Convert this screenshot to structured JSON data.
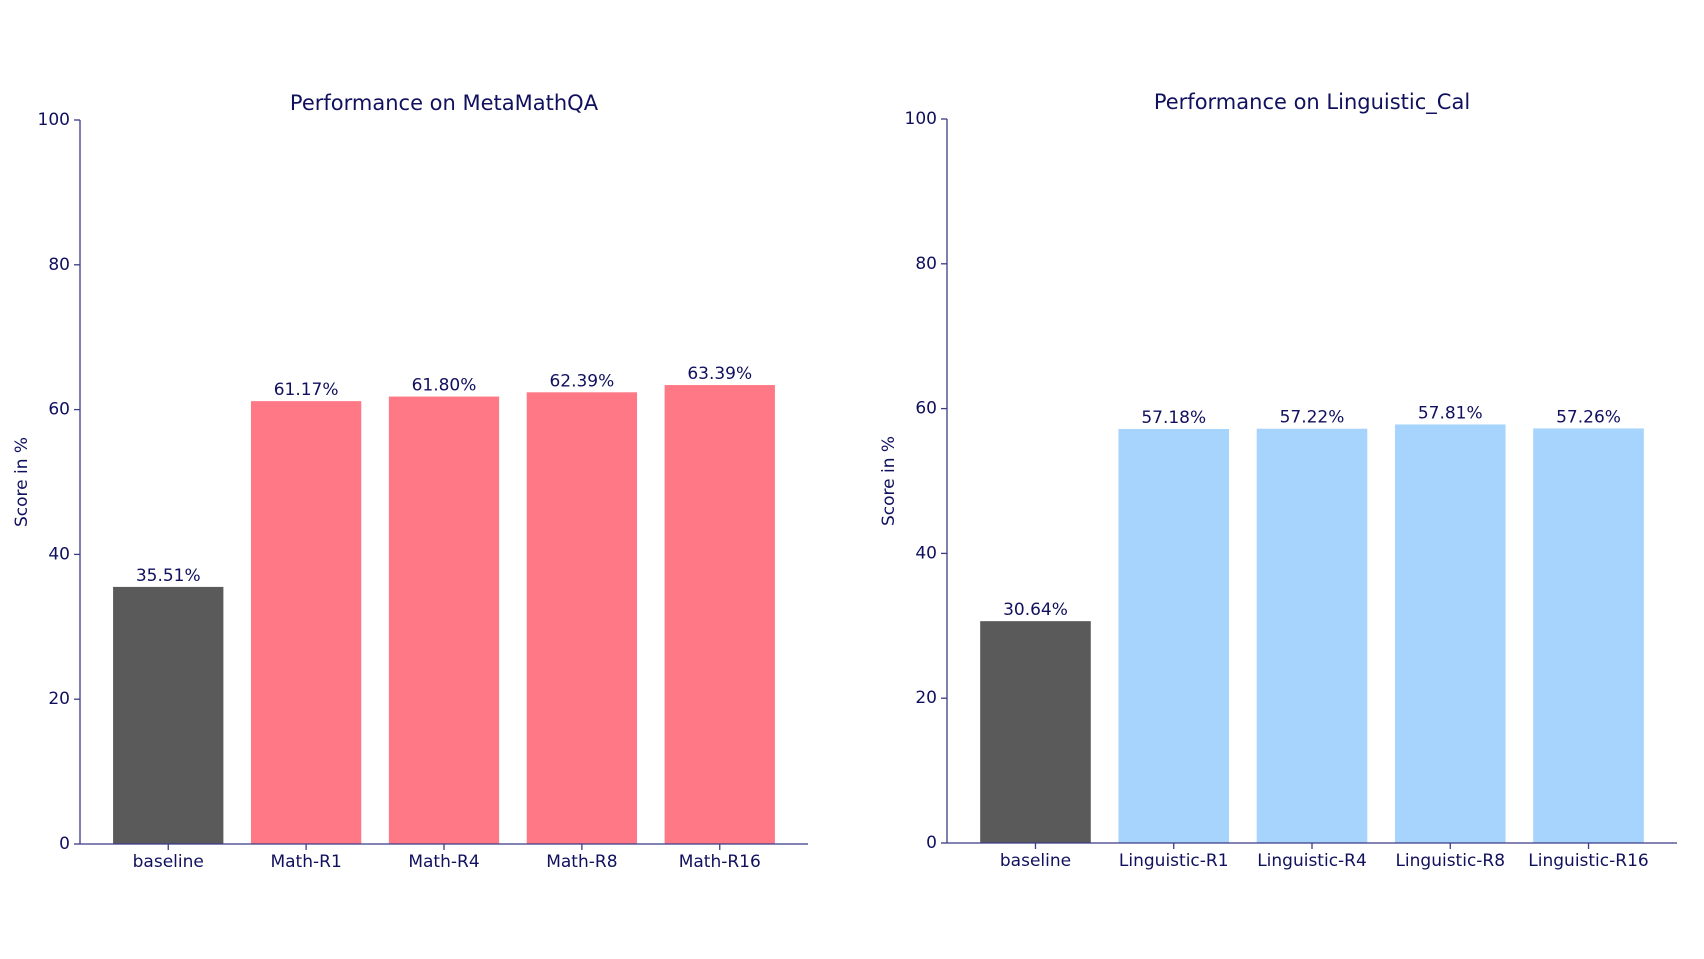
{
  "chart_data": [
    {
      "type": "bar",
      "title": "Performance on MetaMathQA",
      "y_label": "Score in %",
      "categories": [
        "baseline",
        "Math-R1",
        "Math-R4",
        "Math-R8",
        "Math-R16"
      ],
      "values": [
        35.51,
        61.17,
        61.8,
        62.39,
        63.39
      ],
      "value_labels": [
        "35.51%",
        "61.17%",
        "61.80%",
        "62.39%",
        "63.39%"
      ],
      "colors": [
        "#5a5a5a",
        "#ff7885",
        "#ff7885",
        "#ff7885",
        "#ff7885"
      ],
      "ylim": [
        0,
        100
      ],
      "yticks": [
        0,
        20,
        40,
        60,
        80,
        100
      ],
      "grid": false
    },
    {
      "type": "bar",
      "title": "Performance on Linguistic_Cal",
      "y_label": "Score in %",
      "categories": [
        "baseline",
        "Linguistic-R1",
        "Linguistic-R4",
        "Linguistic-R8",
        "Linguistic-R16"
      ],
      "values": [
        30.64,
        57.18,
        57.22,
        57.81,
        57.26
      ],
      "value_labels": [
        "30.64%",
        "57.18%",
        "57.22%",
        "57.81%",
        "57.26%"
      ],
      "colors": [
        "#5a5a5a",
        "#a6d4fc",
        "#a6d4fc",
        "#a6d4fc",
        "#a6d4fc"
      ],
      "ylim": [
        0,
        100
      ],
      "yticks": [
        0,
        20,
        40,
        60,
        80,
        100
      ],
      "grid": false
    }
  ]
}
